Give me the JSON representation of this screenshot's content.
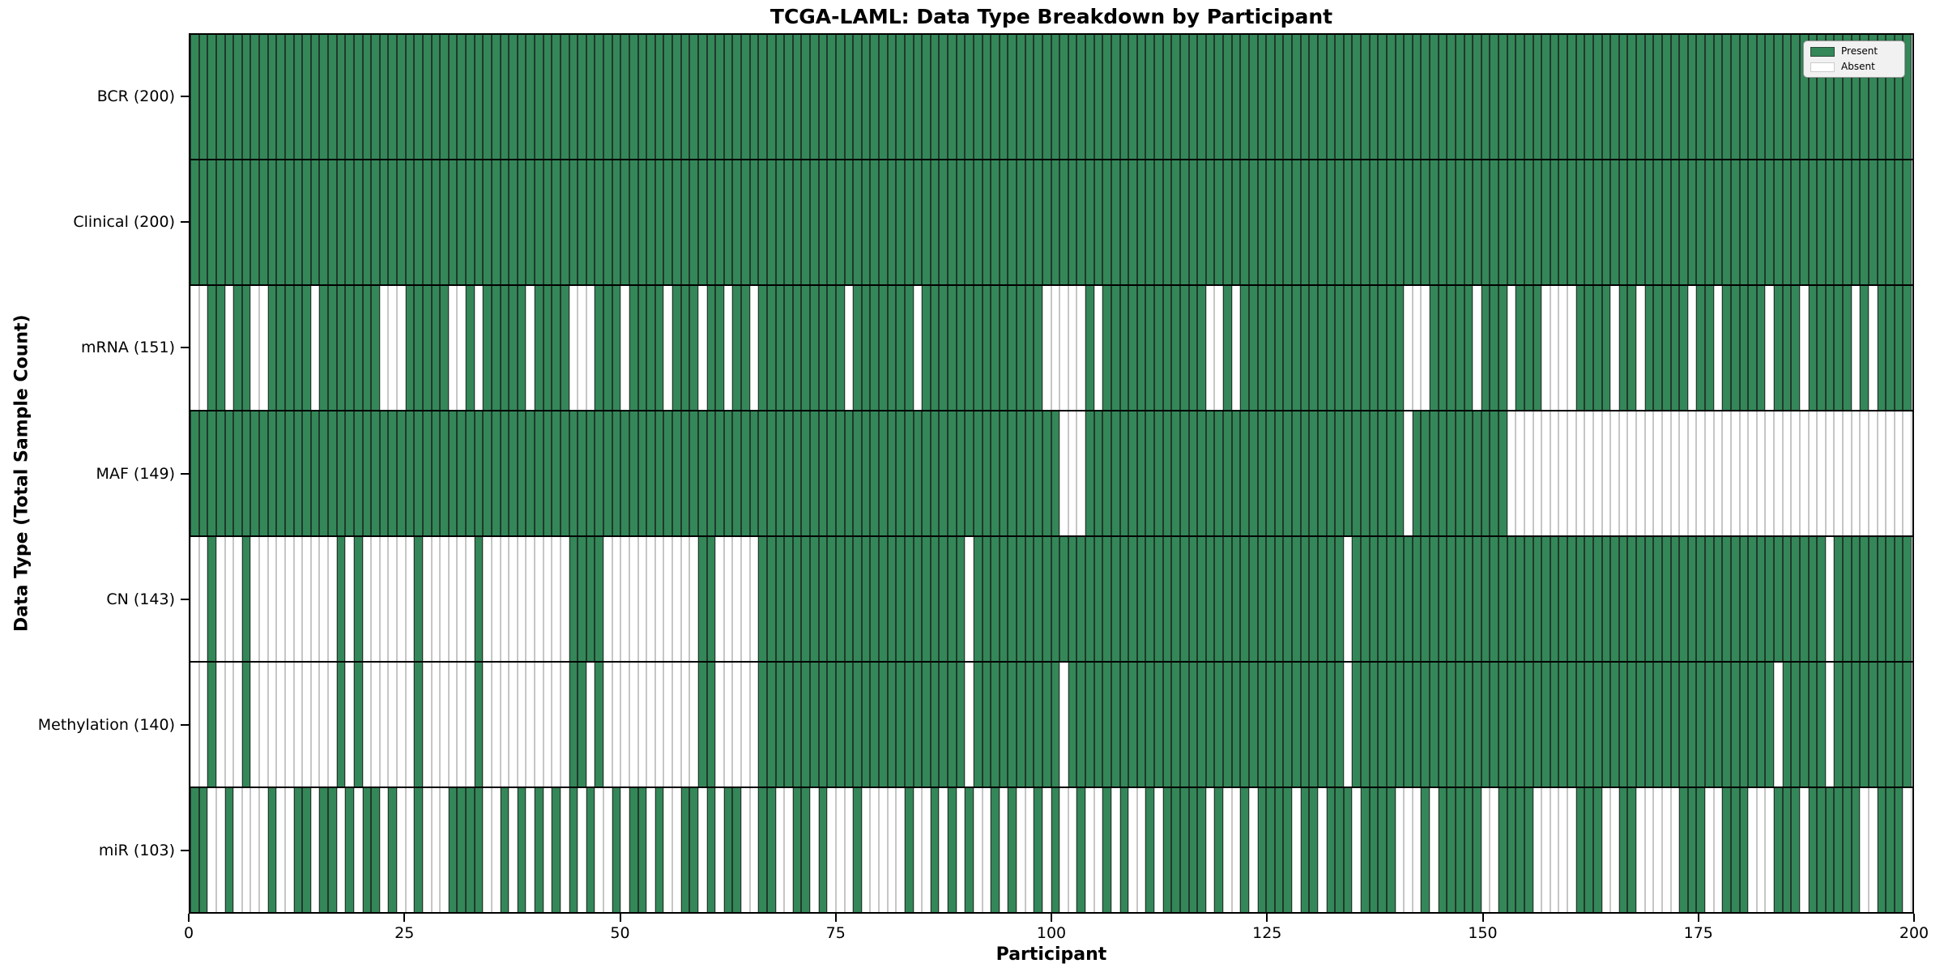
{
  "chart_data": {
    "type": "heatmap",
    "title": "TCGA-LAML: Data Type Breakdown by Participant",
    "xlabel": "Participant",
    "ylabel": "Data Type (Total Sample Count)",
    "legend_labels": [
      "Present",
      "Absent"
    ],
    "legend_position": "upper right",
    "n_participants": 200,
    "x_range": [
      0,
      200
    ],
    "x_ticks": [
      0,
      25,
      50,
      75,
      100,
      125,
      150,
      175,
      200
    ],
    "colors": {
      "present": "#348758",
      "present_edge": "#22382c",
      "absent": "#ffffff",
      "absent_edge": "#c6c6c6",
      "row_separator": "#000000"
    },
    "rows": [
      {
        "name": "BCR",
        "label": "BCR (200)",
        "present_total": 200,
        "absent_participants": []
      },
      {
        "name": "Clinical",
        "label": "Clinical (200)",
        "present_total": 200,
        "absent_participants": []
      },
      {
        "name": "mRNA",
        "label": "mRNA (151)",
        "present_total": 151,
        "absent_participants": [
          [
            0,
            1
          ],
          4,
          [
            7,
            8
          ],
          14,
          [
            22,
            24
          ],
          [
            30,
            31
          ],
          33,
          39,
          [
            44,
            46
          ],
          50,
          55,
          59,
          62,
          65,
          76,
          84,
          [
            99,
            103
          ],
          105,
          [
            118,
            119
          ],
          121,
          [
            141,
            143
          ],
          149,
          153,
          [
            157,
            160
          ],
          165,
          168,
          174,
          177,
          183,
          187,
          193,
          195
        ]
      },
      {
        "name": "MAF",
        "label": "MAF (149)",
        "present_total": 149,
        "absent_participants": [
          [
            101,
            103
          ],
          141,
          [
            153,
            199
          ]
        ]
      },
      {
        "name": "CN",
        "label": "CN (143)",
        "present_total": 143,
        "absent_participants": [
          [
            0,
            1
          ],
          [
            3,
            5
          ],
          [
            7,
            16
          ],
          18,
          [
            20,
            25
          ],
          [
            27,
            32
          ],
          [
            34,
            43
          ],
          [
            48,
            58
          ],
          [
            61,
            65
          ],
          90,
          134,
          190
        ]
      },
      {
        "name": "Methylation",
        "label": "Methylation (140)",
        "present_total": 140,
        "absent_participants": [
          [
            0,
            1
          ],
          [
            3,
            5
          ],
          [
            7,
            16
          ],
          18,
          [
            20,
            25
          ],
          [
            27,
            32
          ],
          [
            34,
            43
          ],
          46,
          [
            48,
            58
          ],
          [
            61,
            65
          ],
          90,
          101,
          134,
          184,
          190
        ]
      },
      {
        "name": "miR",
        "label": "miR (103)",
        "present_total": 103,
        "absent_participants": [
          [
            2,
            3
          ],
          [
            5,
            8
          ],
          [
            10,
            11
          ],
          14,
          17,
          19,
          22,
          [
            24,
            25
          ],
          [
            27,
            29
          ],
          [
            34,
            35
          ],
          37,
          39,
          41,
          43,
          45,
          [
            47,
            48
          ],
          50,
          53,
          [
            55,
            56
          ],
          59,
          61,
          [
            64,
            65
          ],
          [
            68,
            69
          ],
          72,
          [
            74,
            76
          ],
          [
            78,
            82
          ],
          [
            84,
            85
          ],
          87,
          89,
          [
            91,
            92
          ],
          94,
          [
            96,
            97
          ],
          99,
          [
            101,
            102
          ],
          [
            104,
            105
          ],
          107,
          [
            109,
            110
          ],
          112,
          118,
          [
            120,
            121
          ],
          123,
          128,
          131,
          135,
          [
            140,
            142
          ],
          144,
          [
            150,
            151
          ],
          [
            156,
            160
          ],
          [
            164,
            165
          ],
          [
            168,
            172
          ],
          [
            176,
            177
          ],
          [
            181,
            183
          ],
          187,
          [
            194,
            195
          ],
          199
        ]
      }
    ]
  }
}
